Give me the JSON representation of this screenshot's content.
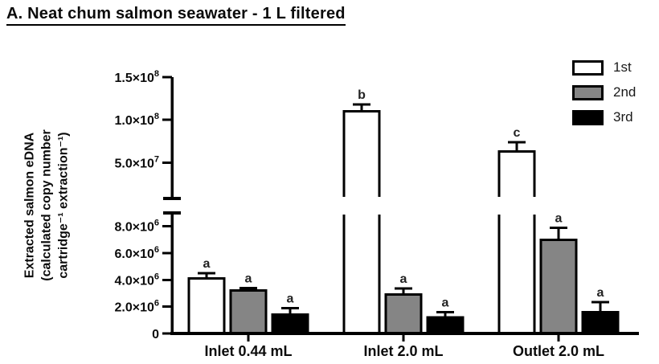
{
  "chart_data": {
    "type": "bar",
    "title": "A. Neat chum salmon seawater - 1 L filtered",
    "ylabel_lines": [
      "Extracted salmon eDNA",
      "(calculated copy number",
      "cartridge⁻¹ extraction⁻¹)"
    ],
    "categories": [
      "Inlet 0.44 mL",
      "Inlet 2.0 mL",
      "Outlet 2.0 mL"
    ],
    "series": [
      {
        "name": "1st",
        "fill": "#ffffff",
        "values": [
          4100000.0,
          110000000.0,
          63000000.0
        ],
        "errors": [
          400000.0,
          8000000.0,
          11000000.0
        ],
        "letters": [
          "a",
          "b",
          "c"
        ]
      },
      {
        "name": "2nd",
        "fill": "#858585",
        "values": [
          3200000.0,
          2900000.0,
          7000000.0
        ],
        "errors": [
          200000.0,
          450000.0,
          900000.0
        ],
        "letters": [
          "a",
          "a",
          "a"
        ]
      },
      {
        "name": "3rd",
        "fill": "#000000",
        "values": [
          1400000.0,
          1200000.0,
          1600000.0
        ],
        "errors": [
          500000.0,
          400000.0,
          750000.0
        ],
        "letters": [
          "a",
          "a",
          "a"
        ]
      }
    ],
    "axis_break": true,
    "upper_axis": {
      "min": 8000000.0,
      "max": 150000000.0,
      "ticks": [
        {
          "value": 150000000.0,
          "base": "1.5×10",
          "sup": "8"
        },
        {
          "value": 100000000.0,
          "base": "1.0×10",
          "sup": "8"
        },
        {
          "value": 50000000.0,
          "base": "5.0×10",
          "sup": "7"
        }
      ]
    },
    "lower_axis": {
      "min": 0,
      "max": 9000000.0,
      "ticks": [
        {
          "value": 8000000.0,
          "base": "8.0×10",
          "sup": "6"
        },
        {
          "value": 6000000.0,
          "base": "6.0×10",
          "sup": "6"
        },
        {
          "value": 4000000.0,
          "base": "4.0×10",
          "sup": "6"
        },
        {
          "value": 2000000.0,
          "base": "2.0×10",
          "sup": "6"
        },
        {
          "value": 0,
          "base": "0",
          "sup": ""
        }
      ]
    },
    "legend_position": "top-right",
    "grid": false,
    "colors": {
      "axis": "#000000",
      "text": "#0b0b0b"
    }
  }
}
